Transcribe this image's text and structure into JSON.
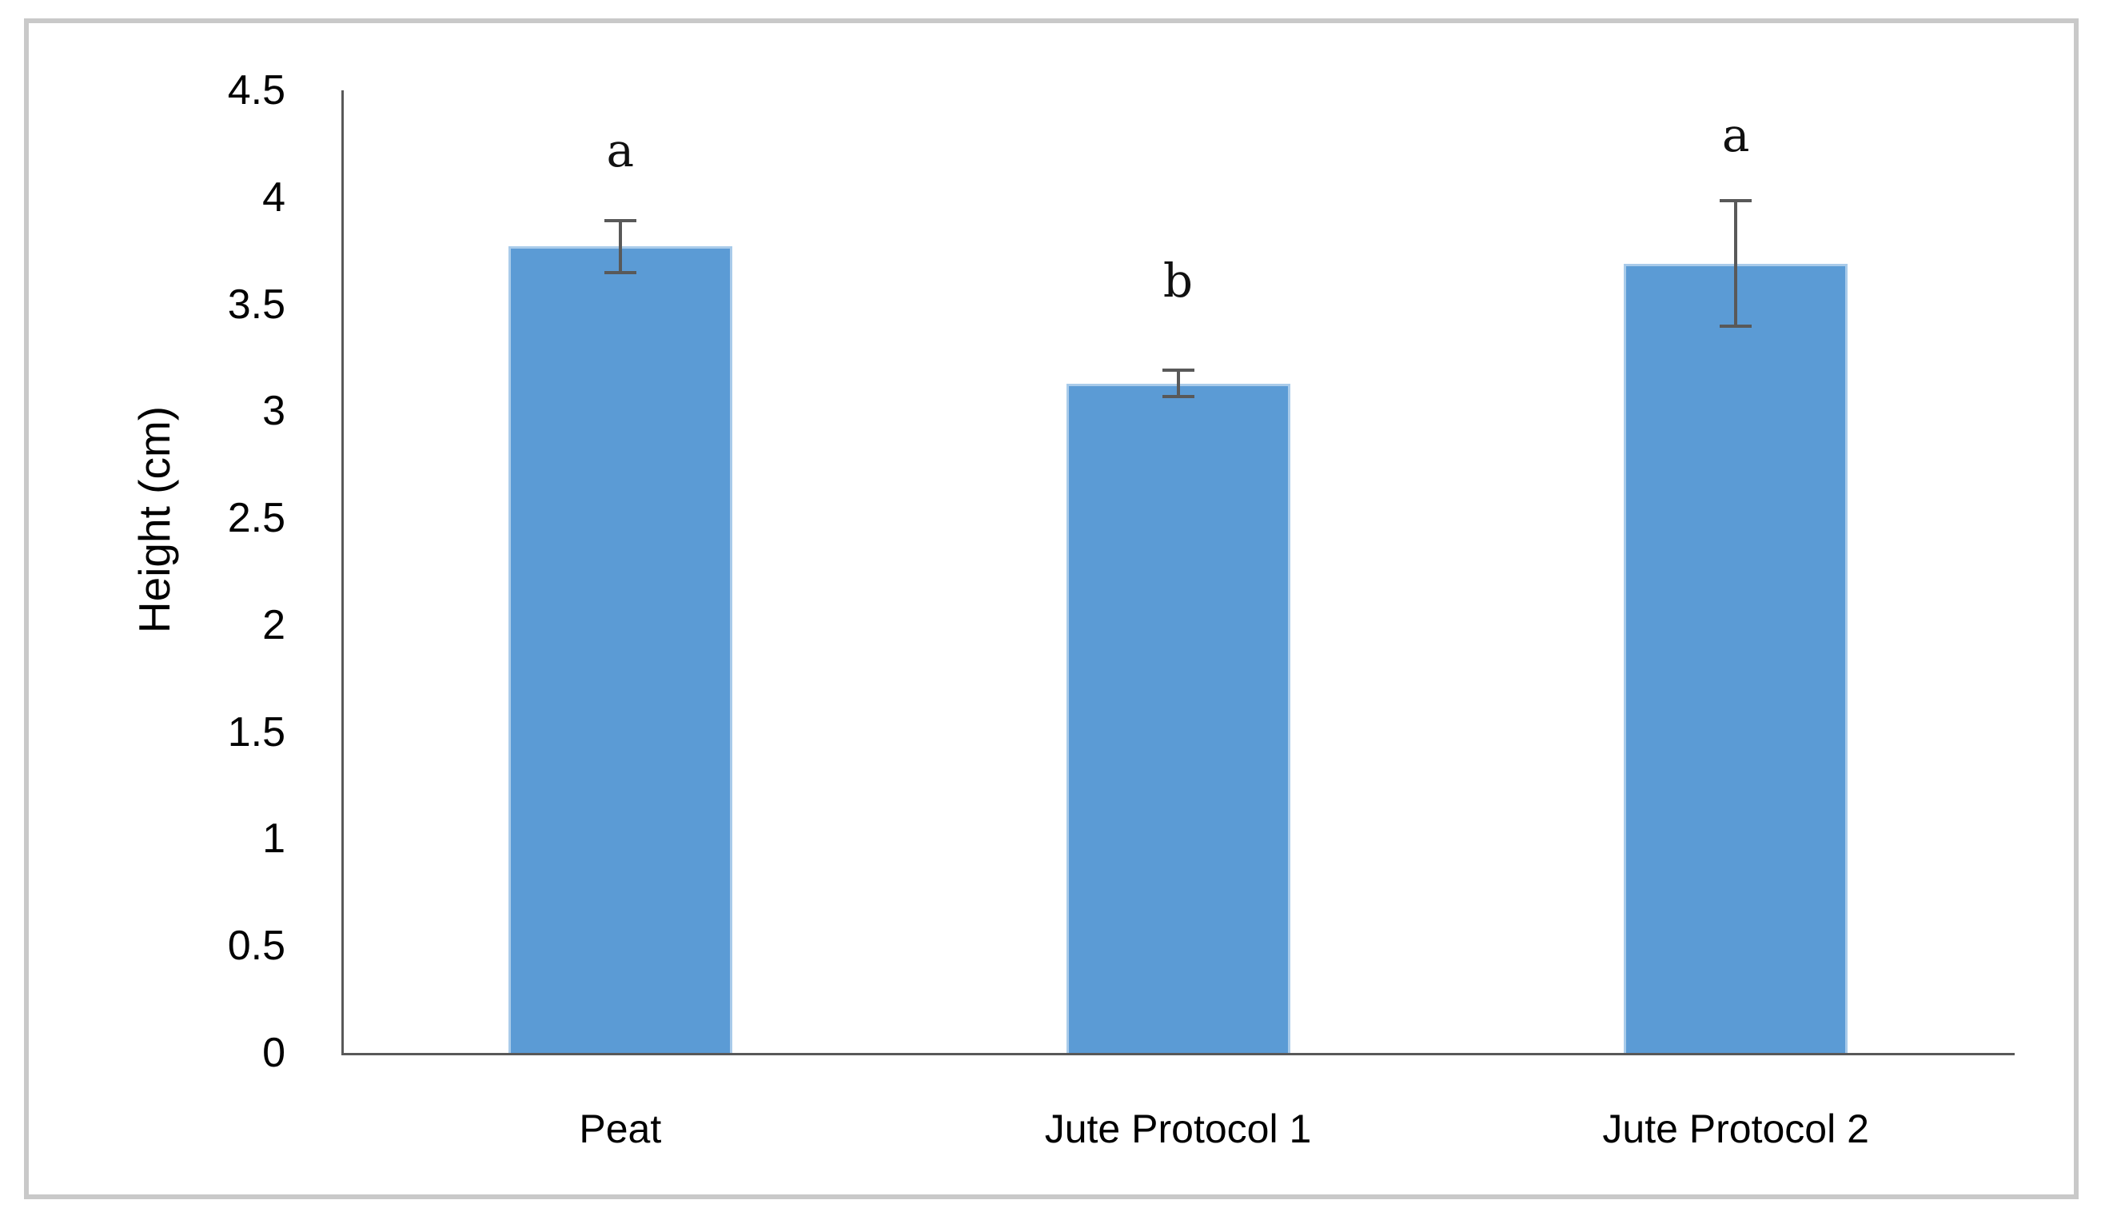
{
  "chart_data": {
    "type": "bar",
    "title": "",
    "xlabel": "",
    "ylabel": "Height (cm)",
    "categories": [
      "Peat",
      "Jute Protocol 1",
      "Jute Protocol 2"
    ],
    "values": [
      3.77,
      3.13,
      3.69
    ],
    "error_bars": [
      0.13,
      0.07,
      0.3
    ],
    "sig_letters": [
      "a",
      "b",
      "a"
    ],
    "sig_letter_y": [
      4.22,
      3.61,
      4.29
    ],
    "ylim": [
      0,
      4.5
    ],
    "ytick_step": 0.5,
    "ytick_labels": [
      "0",
      "0.5",
      "1",
      "1.5",
      "2",
      "2.5",
      "3",
      "3.5",
      "4",
      "4.5"
    ],
    "grid": false,
    "legend": false,
    "colors": {
      "bar_fill": "#5b9bd5",
      "bar_edge": "#a9cbea",
      "error_bar": "#595959",
      "axis_line": "#595959",
      "frame_border": "#c9c9c9",
      "text": "#000000"
    }
  }
}
